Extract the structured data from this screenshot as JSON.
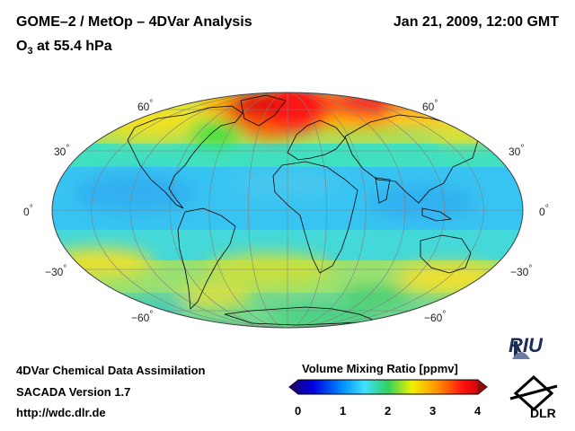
{
  "header": {
    "title": "GOME–2 / MetOp – 4DVar Analysis",
    "subtitle_prefix": "O",
    "subtitle_sub": "3",
    "subtitle_rest": " at 55.4 hPa",
    "datetime": "Jan 21, 2009, 12:00 GMT"
  },
  "map": {
    "projection": "Mollweide",
    "quantity": "O3 volume mixing ratio",
    "lat_labels": {
      "n60": "60",
      "n30": "30",
      "eq": "0",
      "s30": "−30",
      "s60": "−60"
    },
    "degree_symbol": "°"
  },
  "colorbar": {
    "title": "Volume Mixing Ratio [ppmv]",
    "ticks": [
      "0",
      "1",
      "2",
      "3",
      "4"
    ],
    "range": [
      0,
      4
    ],
    "colors": [
      "#1c0070",
      "#0000e0",
      "#0090ff",
      "#40e0ff",
      "#30d060",
      "#f0f000",
      "#ff9000",
      "#ff1010",
      "#b00000"
    ]
  },
  "footer": {
    "line1": "4DVar Chemical Data Assimilation",
    "line2": "SACADA Version 1.7",
    "line3": "http://wdc.dlr.de"
  },
  "logos": {
    "riu": "RIU",
    "dlr": "DLR"
  }
}
